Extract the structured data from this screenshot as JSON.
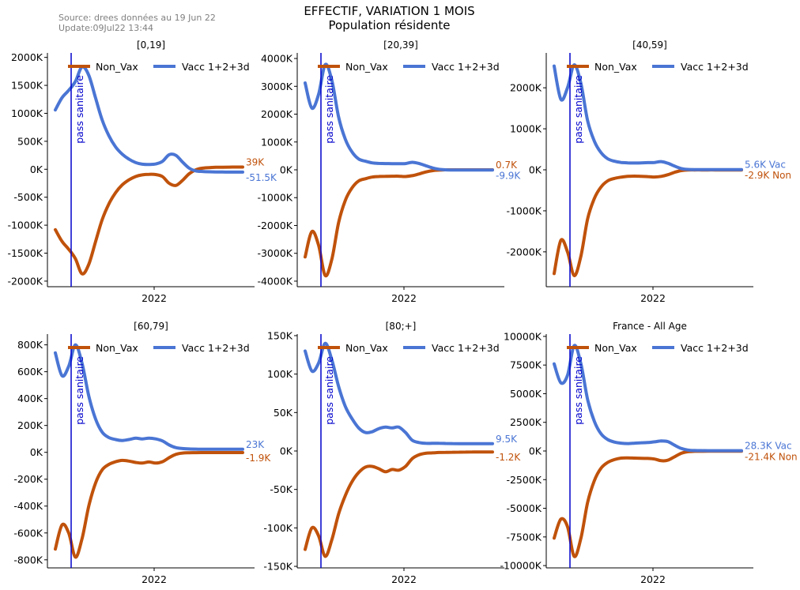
{
  "header": {
    "source": "Source: drees données au 19 Jun 22",
    "update": "Update:09Jul22 13:44",
    "title": "EFFECTIF, VARIATION 1 MOIS",
    "subtitle": "Population résidente"
  },
  "colors": {
    "non_vax": "#c0520b",
    "vacc": "#4a75d4",
    "pass_line": "#0000cc",
    "axis": "#000000"
  },
  "chart_data": [
    {
      "type": "line",
      "title": "[0,19]",
      "x_tick_label": "2022",
      "annotation": "pass sanitaire",
      "legend": [
        "Non_Vax",
        "Vacc 1+2+3d"
      ],
      "legend_placement": "top",
      "ylim": [
        -2100,
        2080
      ],
      "yticks": [
        2000,
        1500,
        1000,
        500,
        0,
        -500,
        -1000,
        -1500,
        -2000
      ],
      "ytick_labels": [
        "2000K",
        "1500K",
        "1000K",
        "500K",
        "0K",
        "-500K",
        "-1000K",
        "-1500K",
        "-2000K"
      ],
      "end_labels": {
        "Non_Vax": "39K",
        "Vacc 1+2+3d": "-51.5K"
      },
      "series": [
        {
          "name": "Non_Vax",
          "values": [
            -1080,
            -1290,
            -1430,
            -1600,
            -1870,
            -1700,
            -1300,
            -900,
            -620,
            -420,
            -280,
            -190,
            -130,
            -100,
            -90,
            -95,
            -130,
            -250,
            -290,
            -200,
            -80,
            -10,
            20,
            30,
            35,
            37,
            38,
            39,
            39
          ]
        },
        {
          "name": "Vacc 1+2+3d",
          "values": [
            1060,
            1280,
            1410,
            1570,
            1830,
            1680,
            1280,
            880,
            600,
            400,
            270,
            180,
            120,
            90,
            85,
            95,
            140,
            260,
            250,
            130,
            20,
            -30,
            -40,
            -45,
            -48,
            -50,
            -51,
            -51.5,
            -51.5
          ]
        }
      ]
    },
    {
      "type": "line",
      "title": "[20,39]",
      "x_tick_label": "2022",
      "annotation": "pass sanitaire",
      "legend": [
        "Non_Vax",
        "Vacc 1+2+3d"
      ],
      "legend_placement": "top",
      "ylim": [
        -4200,
        4200
      ],
      "yticks": [
        4000,
        3000,
        2000,
        1000,
        0,
        -1000,
        -2000,
        -3000,
        -4000
      ],
      "ytick_labels": [
        "4000K",
        "3000K",
        "2000K",
        "1000K",
        "0K",
        "-1000K",
        "-2000K",
        "-3000K",
        "-4000K"
      ],
      "end_labels": {
        "Non_Vax": "0.7K",
        "Vacc 1+2+3d": "-9.9K"
      },
      "series": [
        {
          "name": "Non_Vax",
          "values": [
            -3130,
            -2220,
            -2700,
            -3800,
            -3200,
            -1900,
            -1100,
            -650,
            -400,
            -320,
            -260,
            -240,
            -235,
            -230,
            -230,
            -240,
            -210,
            -150,
            -80,
            -30,
            -10,
            0,
            0.5,
            0.6,
            0.7,
            0.7,
            0.7,
            0.7,
            0.7
          ]
        },
        {
          "name": "Vacc 1+2+3d",
          "values": [
            3120,
            2220,
            2700,
            3780,
            3200,
            1900,
            1100,
            640,
            390,
            310,
            250,
            230,
            225,
            220,
            220,
            225,
            270,
            230,
            150,
            70,
            20,
            0,
            -8,
            -9,
            -9.5,
            -9.8,
            -9.9,
            -9.9,
            -9.9
          ]
        }
      ]
    },
    {
      "type": "line",
      "title": "[40,59]",
      "x_tick_label": "2022",
      "annotation": "pass sanitaire",
      "legend": [
        "Non_Vax",
        "Vacc 1+2+3d"
      ],
      "legend_placement": "top",
      "ylim": [
        -2850,
        2850
      ],
      "yticks": [
        2000,
        1000,
        0,
        -1000,
        -2000
      ],
      "ytick_labels": [
        "2000K",
        "1000K",
        "0K",
        "-1000K",
        "-2000K"
      ],
      "end_labels": {
        "Non_Vax": "-2.9K Non",
        "Vacc 1+2+3d": "5.6K Vac"
      },
      "series": [
        {
          "name": "Non_Vax",
          "values": [
            -2530,
            -1720,
            -2000,
            -2580,
            -2100,
            -1200,
            -700,
            -420,
            -270,
            -210,
            -180,
            -160,
            -155,
            -160,
            -165,
            -175,
            -160,
            -120,
            -60,
            -20,
            -5,
            -3,
            -3,
            -2.9,
            -2.9,
            -2.9,
            -2.9,
            -2.9,
            -2.9
          ]
        },
        {
          "name": "Vacc 1+2+3d",
          "values": [
            2530,
            1720,
            2000,
            2560,
            2100,
            1200,
            700,
            420,
            270,
            210,
            180,
            170,
            165,
            170,
            175,
            180,
            200,
            160,
            90,
            30,
            10,
            6,
            5.8,
            5.7,
            5.6,
            5.6,
            5.6,
            5.6,
            5.6
          ]
        }
      ]
    },
    {
      "type": "line",
      "title": "[60,79]",
      "x_tick_label": "2022",
      "annotation": "pass sanitaire",
      "legend": [
        "Non_Vax",
        "Vacc 1+2+3d"
      ],
      "legend_placement": "top",
      "ylim": [
        -860,
        880
      ],
      "yticks": [
        800,
        600,
        400,
        200,
        0,
        -200,
        -400,
        -600,
        -800
      ],
      "ytick_labels": [
        "800K",
        "600K",
        "400K",
        "200K",
        "0K",
        "-200K",
        "-400K",
        "-600K",
        "-800K"
      ],
      "end_labels": {
        "Non_Vax": "-1.9K",
        "Vacc 1+2+3d": "23K"
      },
      "series": [
        {
          "name": "Non_Vax",
          "values": [
            -720,
            -540,
            -600,
            -780,
            -640,
            -400,
            -230,
            -130,
            -90,
            -70,
            -60,
            -65,
            -75,
            -80,
            -72,
            -80,
            -70,
            -40,
            -15,
            -5,
            -3,
            -2.5,
            -2,
            -2,
            -1.9,
            -1.9,
            -1.9,
            -1.9,
            -1.9
          ]
        },
        {
          "name": "Vacc 1+2+3d",
          "values": [
            740,
            570,
            640,
            800,
            660,
            420,
            250,
            150,
            110,
            95,
            88,
            95,
            105,
            100,
            106,
            100,
            85,
            55,
            35,
            28,
            25,
            24,
            23.5,
            23.2,
            23,
            23,
            23,
            23,
            23
          ]
        }
      ]
    },
    {
      "type": "line",
      "title": "[80;+]",
      "x_tick_label": "2022",
      "annotation": "pass sanitaire",
      "legend": [
        "Non_Vax",
        "Vacc 1+2+3d"
      ],
      "legend_placement": "top",
      "ylim": [
        -152,
        152
      ],
      "yticks": [
        150,
        100,
        50,
        0,
        -50,
        -100,
        -150
      ],
      "ytick_labels": [
        "150K",
        "100K",
        "50K",
        "0K",
        "-50K",
        "-100K",
        "-150K"
      ],
      "end_labels": {
        "Non_Vax": "-1.2K",
        "Vacc 1+2+3d": "9.5K"
      },
      "series": [
        {
          "name": "Non_Vax",
          "values": [
            -128,
            -100,
            -110,
            -137,
            -115,
            -82,
            -58,
            -40,
            -28,
            -21,
            -20,
            -23,
            -27,
            -24,
            -25,
            -20,
            -10,
            -5,
            -3,
            -2.5,
            -2,
            -1.8,
            -1.6,
            -1.5,
            -1.4,
            -1.3,
            -1.2,
            -1.2,
            -1.2
          ]
        },
        {
          "name": "Vacc 1+2+3d",
          "values": [
            130,
            104,
            114,
            140,
            118,
            84,
            58,
            42,
            30,
            24,
            25,
            29,
            31,
            30,
            31,
            24,
            14,
            11,
            10,
            10,
            10,
            9.8,
            9.7,
            9.6,
            9.5,
            9.5,
            9.5,
            9.5,
            9.5
          ]
        }
      ]
    },
    {
      "type": "line",
      "title": "France - All Age",
      "x_tick_label": "2022",
      "annotation": "pass sanitaire",
      "legend": [
        "Non_Vax",
        "Vacc 1+2+3d"
      ],
      "legend_placement": "top",
      "ylim": [
        -10200,
        10200
      ],
      "yticks": [
        10000,
        7500,
        5000,
        2500,
        0,
        -2500,
        -5000,
        -7500,
        -10000
      ],
      "ytick_labels": [
        "10000K",
        "7500K",
        "5000K",
        "2500K",
        "0K",
        "-2500K",
        "-5000K",
        "-7500K",
        "-10000K"
      ],
      "end_labels": {
        "Non_Vax": "-21.4K Non",
        "Vacc 1+2+3d": "28.3K Vac"
      },
      "series": [
        {
          "name": "Non_Vax",
          "values": [
            -7600,
            -5950,
            -6600,
            -9200,
            -7600,
            -4500,
            -2600,
            -1500,
            -1000,
            -750,
            -620,
            -600,
            -620,
            -640,
            -650,
            -700,
            -850,
            -800,
            -500,
            -200,
            -60,
            -30,
            -25,
            -23,
            -22,
            -21.5,
            -21.4,
            -21.4,
            -21.4
          ]
        },
        {
          "name": "Vacc 1+2+3d",
          "values": [
            7600,
            5950,
            6600,
            9200,
            7600,
            4500,
            2600,
            1500,
            1000,
            780,
            680,
            650,
            680,
            720,
            740,
            800,
            880,
            820,
            500,
            220,
            80,
            40,
            32,
            30,
            29,
            28.5,
            28.3,
            28.3,
            28.3
          ]
        }
      ]
    }
  ]
}
